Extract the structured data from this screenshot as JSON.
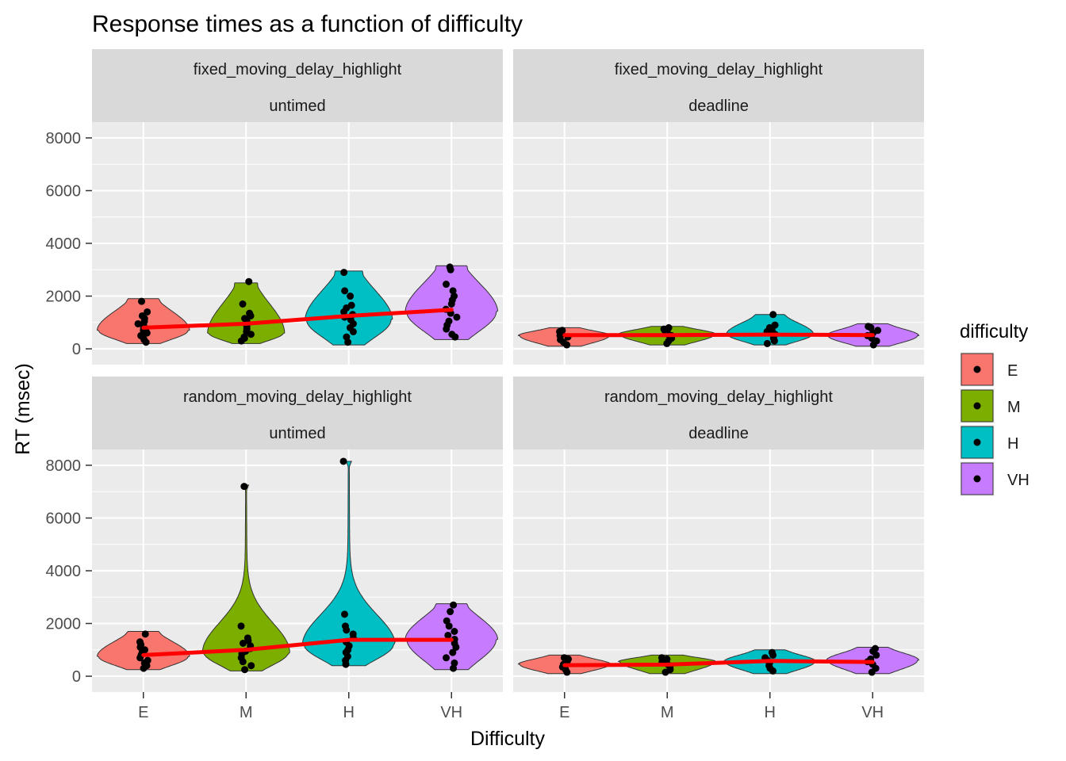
{
  "chart_data": {
    "type": "violin",
    "title": "Response times as a function of difficulty",
    "xlabel": "Difficulty",
    "ylabel": "RT (msec)",
    "categories": [
      "E",
      "M",
      "H",
      "VH"
    ],
    "yticks": [
      0,
      2000,
      4000,
      6000,
      8000
    ],
    "ylim": [
      -600,
      8600
    ],
    "grid": true,
    "legend": {
      "title": "difficulty",
      "position": "right",
      "entries": [
        {
          "label": "E",
          "color": "#F8766D"
        },
        {
          "label": "M",
          "color": "#7CAE00"
        },
        {
          "label": "H",
          "color": "#00BFC4"
        },
        {
          "label": "VH",
          "color": "#C77CFF"
        }
      ]
    },
    "mean_line_color": "#FF0000",
    "panels": [
      {
        "strip_top": "fixed_moving_delay_highlight",
        "strip_bottom": "untimed",
        "means": [
          800,
          950,
          1250,
          1480
        ],
        "violins": [
          {
            "range": [
              200,
              1900
            ],
            "mode": 700,
            "width": 0.9
          },
          {
            "range": [
              200,
              2500
            ],
            "mode": 600,
            "width": 0.75
          },
          {
            "range": [
              150,
              2950
            ],
            "mode": 1100,
            "width": 0.85
          },
          {
            "range": [
              350,
              3150
            ],
            "mode": 1400,
            "width": 0.9
          }
        ],
        "points": [
          [
            250,
            350,
            450,
            500,
            600,
            650,
            700,
            800,
            900,
            950,
            1050,
            1150,
            1250,
            1400,
            1800
          ],
          [
            300,
            400,
            450,
            550,
            650,
            750,
            850,
            950,
            1050,
            1150,
            1250,
            1350,
            1700,
            2550
          ],
          [
            250,
            450,
            650,
            800,
            950,
            1100,
            1200,
            1300,
            1400,
            1550,
            1650,
            2000,
            2200,
            2900
          ],
          [
            450,
            550,
            750,
            900,
            1050,
            1200,
            1350,
            1500,
            1700,
            1850,
            2000,
            2200,
            2450,
            3000,
            3100
          ]
        ]
      },
      {
        "strip_top": "fixed_moving_delay_highlight",
        "strip_bottom": "deadline",
        "means": [
          520,
          520,
          540,
          520
        ],
        "violins": [
          {
            "range": [
              100,
              800
            ],
            "mode": 500,
            "width": 0.9
          },
          {
            "range": [
              150,
              850
            ],
            "mode": 550,
            "width": 0.95
          },
          {
            "range": [
              150,
              1300
            ],
            "mode": 550,
            "width": 0.85
          },
          {
            "range": [
              100,
              950
            ],
            "mode": 500,
            "width": 0.9
          }
        ],
        "points": [
          [
            150,
            250,
            350,
            450,
            500,
            550,
            650,
            700
          ],
          [
            200,
            300,
            400,
            500,
            550,
            650,
            700,
            750,
            800
          ],
          [
            200,
            300,
            400,
            500,
            550,
            650,
            700,
            800,
            900,
            1300
          ],
          [
            150,
            300,
            400,
            500,
            600,
            700,
            800,
            850
          ]
        ]
      },
      {
        "strip_top": "random_moving_delay_highlight",
        "strip_bottom": "untimed",
        "means": [
          800,
          1000,
          1380,
          1380
        ],
        "violins": [
          {
            "range": [
              250,
              1700
            ],
            "mode": 750,
            "width": 0.9
          },
          {
            "range": [
              200,
              7250
            ],
            "mode": 900,
            "width": 0.85
          },
          {
            "range": [
              400,
              8150
            ],
            "mode": 1200,
            "width": 0.9
          },
          {
            "range": [
              250,
              2750
            ],
            "mode": 1400,
            "width": 0.9
          }
        ],
        "points": [
          [
            300,
            400,
            500,
            600,
            700,
            800,
            900,
            1000,
            1100,
            1200,
            1300,
            1600
          ],
          [
            250,
            400,
            550,
            700,
            850,
            950,
            1050,
            1150,
            1250,
            1350,
            1450,
            1900,
            7200
          ],
          [
            450,
            600,
            750,
            900,
            1000,
            1150,
            1300,
            1450,
            1600,
            1750,
            1900,
            2350,
            8150
          ],
          [
            300,
            500,
            700,
            900,
            1100,
            1250,
            1400,
            1550,
            1700,
            1900,
            2100,
            2450,
            2700
          ]
        ]
      },
      {
        "strip_top": "random_moving_delay_highlight",
        "strip_bottom": "deadline",
        "means": [
          420,
          440,
          580,
          540
        ],
        "violins": [
          {
            "range": [
              100,
              800
            ],
            "mode": 450,
            "width": 0.9
          },
          {
            "range": [
              100,
              800
            ],
            "mode": 550,
            "width": 0.95
          },
          {
            "range": [
              100,
              1000
            ],
            "mode": 550,
            "width": 0.9
          },
          {
            "range": [
              100,
              1100
            ],
            "mode": 600,
            "width": 0.9
          }
        ],
        "points": [
          [
            150,
            250,
            350,
            450,
            550,
            650,
            700
          ],
          [
            150,
            250,
            350,
            450,
            550,
            650,
            700
          ],
          [
            200,
            300,
            400,
            500,
            600,
            700,
            800,
            900
          ],
          [
            150,
            300,
            450,
            550,
            650,
            800,
            950,
            1050
          ]
        ]
      }
    ]
  }
}
